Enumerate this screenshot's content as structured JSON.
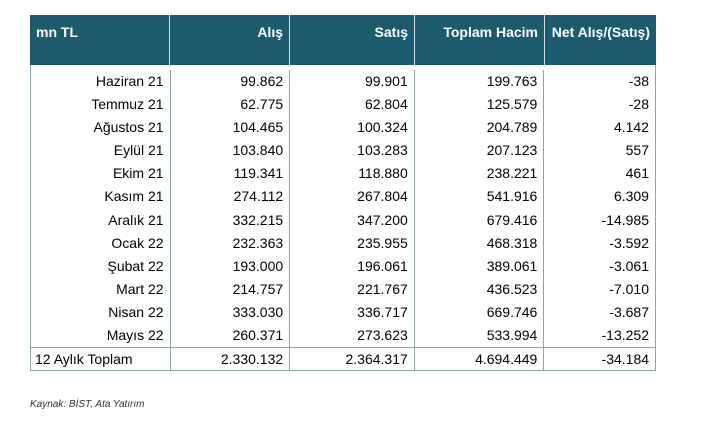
{
  "table": {
    "headers": [
      "mn TL",
      "Alış",
      "Satış",
      "Toplam Hacim",
      "Net Alış/(Satış)"
    ],
    "rows": [
      [
        "Haziran 21",
        "99.862",
        "99.901",
        "199.763",
        "-38"
      ],
      [
        "Temmuz 21",
        "62.775",
        "62.804",
        "125.579",
        "-28"
      ],
      [
        "Ağustos 21",
        "104.465",
        "100.324",
        "204.789",
        "4.142"
      ],
      [
        "Eylül 21",
        "103.840",
        "103.283",
        "207.123",
        "557"
      ],
      [
        "Ekim 21",
        "119.341",
        "118.880",
        "238.221",
        "461"
      ],
      [
        "Kasım 21",
        "274.112",
        "267.804",
        "541.916",
        "6.309"
      ],
      [
        "Aralık 21",
        "332.215",
        "347.200",
        "679.416",
        "-14.985"
      ],
      [
        "Ocak 22",
        "232.363",
        "235.955",
        "468.318",
        "-3.592"
      ],
      [
        "Şubat 22",
        "193.000",
        "196.061",
        "389.061",
        "-3.061"
      ],
      [
        "Mart 22",
        "214.757",
        "221.767",
        "436.523",
        "-7.010"
      ],
      [
        "Nisan 22",
        "333.030",
        "336.717",
        "669.746",
        "-3.687"
      ],
      [
        "Mayıs 22",
        "260.371",
        "273.623",
        "533.994",
        "-13.252"
      ]
    ],
    "total": [
      "12 Aylık Toplam",
      "2.330.132",
      "2.364.317",
      "4.694.449",
      "-34.184"
    ]
  },
  "source": "Kaynak: BİST, Ata Yatırım",
  "colors": {
    "header_bg": "#1c5a6e",
    "border": "#8fa3aa"
  }
}
